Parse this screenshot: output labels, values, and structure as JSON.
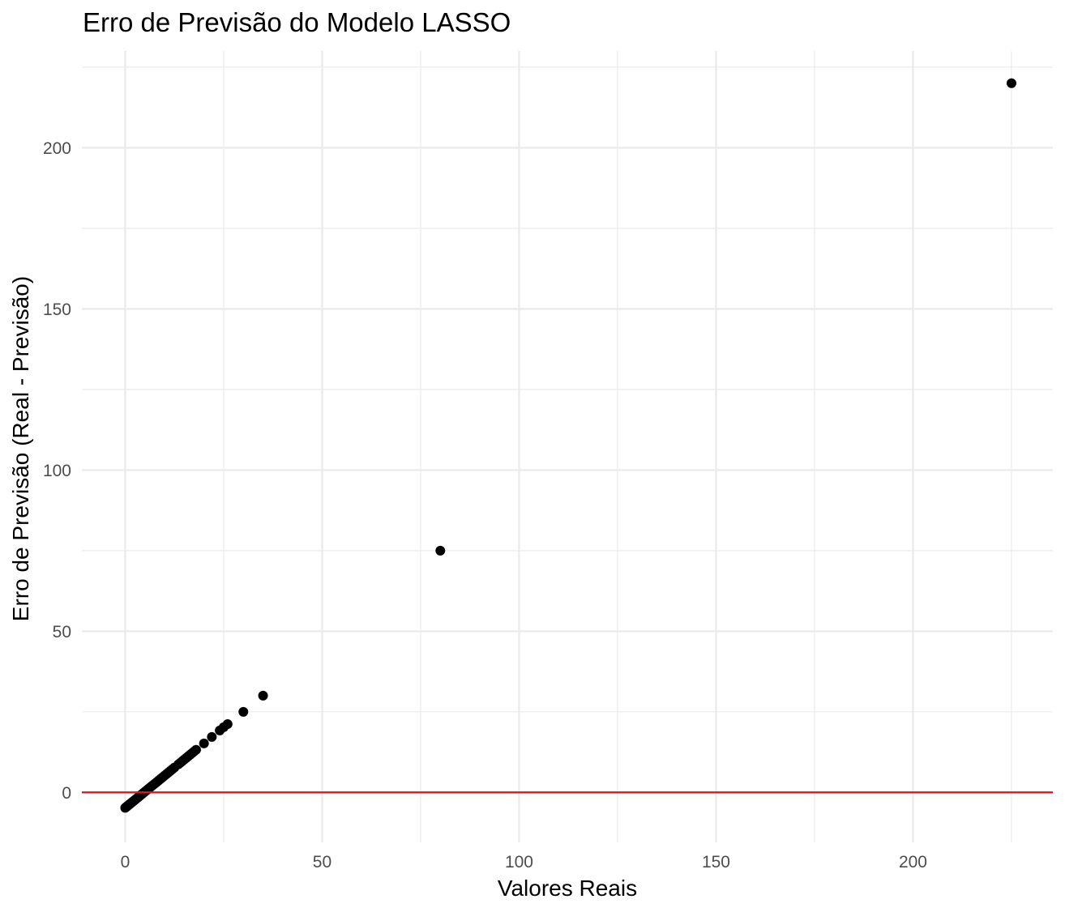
{
  "chart_data": {
    "type": "scatter",
    "title": "Erro de Previsão do Modelo LASSO",
    "xlabel": "Valores Reais",
    "ylabel": "Erro de Previsão (Real - Previsão)",
    "xlim": [
      -11,
      235.5
    ],
    "ylim": [
      -15.5,
      230
    ],
    "x_ticks": [
      0,
      50,
      100,
      150,
      200
    ],
    "y_ticks": [
      0,
      50,
      100,
      150,
      200
    ],
    "x_tick_labels": [
      "0",
      "50",
      "100",
      "150",
      "200"
    ],
    "y_tick_labels": [
      "0",
      "50",
      "100",
      "150",
      "200"
    ],
    "grid": true,
    "legend": "none",
    "point_color": "#000000",
    "reference_line": {
      "y": 0,
      "color": "#e8121f"
    },
    "series": [
      {
        "x": [
          0.0,
          0.2,
          0.4,
          0.6,
          0.8,
          1.0,
          1.2,
          1.5,
          1.8,
          2.0,
          2.3,
          2.6,
          3.0,
          3.3,
          3.6,
          4.0,
          4.4,
          4.8,
          5.2,
          5.6,
          6.0,
          6.5,
          7.0,
          7.5,
          8.0,
          8.5,
          9.0,
          9.5,
          10.0,
          10.5,
          11.0,
          11.5,
          12.0,
          12.5,
          13.5,
          14.0,
          14.5,
          15.0,
          15.5,
          16.0,
          16.5,
          17.0,
          17.5,
          18.0,
          20.0,
          22.0,
          24.0,
          25.0,
          26.0,
          30.0,
          35.0,
          80.0,
          225.0
        ],
        "y": [
          -4.8,
          -4.6,
          -4.4,
          -4.2,
          -4.0,
          -3.8,
          -3.6,
          -3.3,
          -3.0,
          -2.8,
          -2.5,
          -2.2,
          -1.8,
          -1.5,
          -1.2,
          -0.8,
          -0.4,
          0.0,
          0.4,
          0.8,
          1.2,
          1.7,
          2.2,
          2.7,
          3.2,
          3.7,
          4.2,
          4.7,
          5.2,
          5.7,
          6.2,
          6.7,
          7.2,
          7.7,
          8.7,
          9.2,
          9.7,
          10.2,
          10.7,
          11.2,
          11.7,
          12.2,
          12.7,
          13.2,
          15.2,
          17.2,
          19.2,
          20.2,
          21.2,
          25.0,
          30.0,
          75.0,
          220.0
        ]
      }
    ]
  }
}
